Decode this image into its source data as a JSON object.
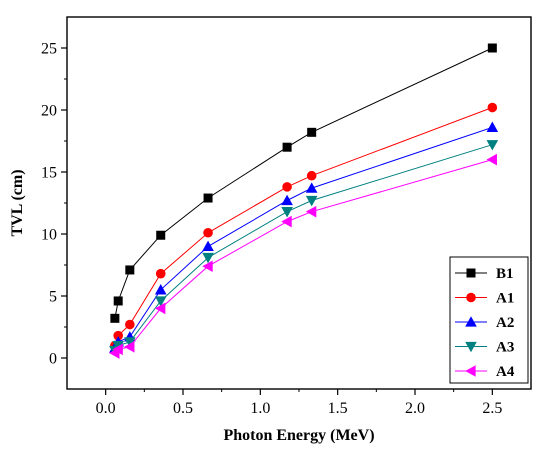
{
  "chart_data": {
    "type": "line",
    "title": "",
    "xlabel": "Photon Energy (MeV)",
    "ylabel": "TVL (cm)",
    "xlim": [
      -0.25,
      2.75
    ],
    "ylim": [
      -2.5,
      27.5
    ],
    "x_ticks": [
      0.0,
      0.5,
      1.0,
      1.5,
      2.0,
      2.5
    ],
    "x_tick_labels": [
      "0.0",
      "0.5",
      "1.0",
      "1.5",
      "2.0",
      "2.5"
    ],
    "y_ticks": [
      0,
      5,
      10,
      15,
      20,
      25
    ],
    "y_tick_labels": [
      "0",
      "5",
      "10",
      "15",
      "20",
      "25"
    ],
    "grid": false,
    "legend_position": "bottom-right",
    "x": [
      0.0595,
      0.081,
      0.1562,
      0.356,
      0.662,
      1.173,
      1.332,
      2.5
    ],
    "series": [
      {
        "name": "B1",
        "color": "#000000",
        "marker": "square",
        "values": [
          3.2,
          4.6,
          7.1,
          9.9,
          12.9,
          17.0,
          18.2,
          25.0
        ]
      },
      {
        "name": "A1",
        "color": "#ff0000",
        "marker": "circle",
        "values": [
          1.0,
          1.8,
          2.7,
          6.8,
          10.1,
          13.8,
          14.7,
          20.2
        ]
      },
      {
        "name": "A2",
        "color": "#0000ff",
        "marker": "triangle-up",
        "values": [
          0.8,
          1.3,
          1.7,
          5.5,
          9.0,
          12.7,
          13.7,
          18.6
        ]
      },
      {
        "name": "A3",
        "color": "#008080",
        "marker": "triangle-down",
        "values": [
          0.6,
          1.0,
          1.3,
          4.6,
          8.1,
          11.8,
          12.7,
          17.2
        ]
      },
      {
        "name": "A4",
        "color": "#ff00ff",
        "marker": "triangle-left",
        "values": [
          0.4,
          0.7,
          0.9,
          4.0,
          7.4,
          11.0,
          11.8,
          16.0
        ]
      }
    ]
  }
}
